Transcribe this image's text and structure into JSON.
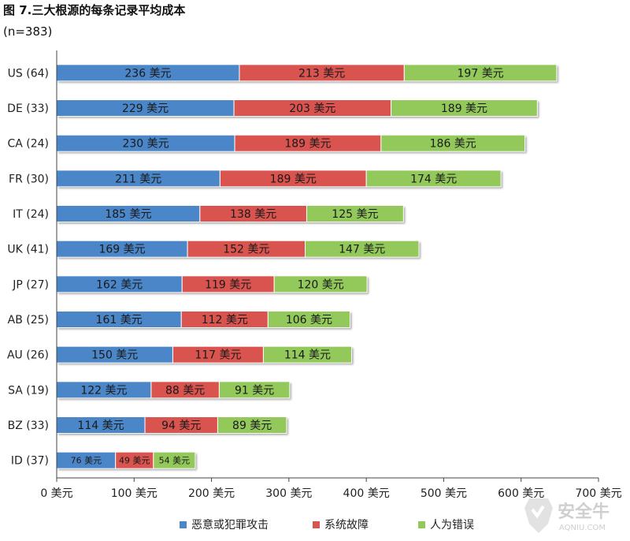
{
  "title": "图 7.三大根源的每条记录平均成本",
  "subtitle": "(n=383)",
  "colors": {
    "malicious": "#4a86c8",
    "system": "#d9534f",
    "human": "#93c95b",
    "axis": "#444444",
    "label": "#1a1a1a"
  },
  "legend": {
    "malicious": "恶意或犯罪攻击",
    "system": "系统故障",
    "human": "人为错误"
  },
  "watermark": {
    "brand": "安全牛",
    "sub": "AQNIU.COM"
  },
  "chart_data": {
    "type": "bar",
    "orientation": "horizontal",
    "stacked": true,
    "unit": "美元",
    "categories": [
      "US (64)",
      "DE (33)",
      "CA (24)",
      "FR (30)",
      "IT (24)",
      "UK (41)",
      "JP (27)",
      "AB (25)",
      "AU (26)",
      "SA (19)",
      "BZ (33)",
      "ID (37)"
    ],
    "series": [
      {
        "name": "恶意或犯罪攻击",
        "values": [
          236,
          229,
          230,
          211,
          185,
          169,
          162,
          161,
          150,
          122,
          114,
          76
        ],
        "labels": [
          "236 美元",
          "229 美元",
          "230 美元",
          "211 美元",
          "185 美元",
          "169 美元",
          "162 美元",
          "161 美元",
          "150 美元",
          "122 美元",
          "114 美元",
          "76 美元"
        ]
      },
      {
        "name": "系统故障",
        "values": [
          213,
          203,
          189,
          189,
          138,
          152,
          119,
          112,
          117,
          88,
          94,
          49
        ],
        "labels": [
          "213 美元",
          "203 美元",
          "189 美元",
          "189 美元",
          "138 美元",
          "152 美元",
          "119 美元",
          "112 美元",
          "117 美元",
          "88 美元",
          "94 美元",
          "49 美元"
        ]
      },
      {
        "name": "人为错误",
        "values": [
          197,
          189,
          186,
          174,
          125,
          147,
          120,
          106,
          114,
          91,
          89,
          54
        ],
        "labels": [
          "197 美元",
          "189 美元",
          "186 美元",
          "174 美元",
          "125 美元",
          "147 美元",
          "120 美元",
          "106 美元",
          "114 美元",
          "91 美元",
          "89 美元",
          "54 美元"
        ]
      }
    ],
    "xlim": [
      0,
      700
    ],
    "xticks": [
      0,
      100,
      200,
      300,
      400,
      500,
      600,
      700
    ],
    "xtick_labels": [
      "0 美元",
      "100 美元",
      "200 美元",
      "300 美元",
      "400 美元",
      "500 美元",
      "600 美元",
      "700 美元"
    ],
    "grid": false,
    "legend_position": "bottom"
  }
}
